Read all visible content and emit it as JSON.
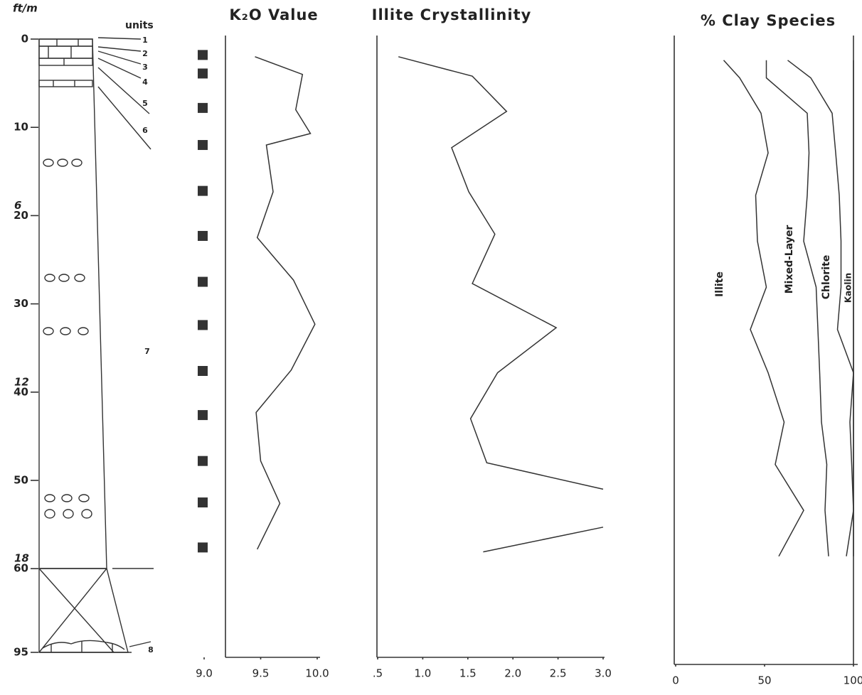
{
  "depth_axis": {
    "label": "ft/m",
    "ticks": [
      0,
      10,
      20,
      30,
      40,
      50,
      60,
      95
    ],
    "metric_ticks": [
      {
        "value": 20,
        "label": "6"
      },
      {
        "value": 40,
        "label": "12"
      },
      {
        "value": 60,
        "label": "18"
      }
    ]
  },
  "lithology": {
    "label": "units",
    "units": [
      "1",
      "2",
      "3",
      "4",
      "5",
      "6",
      "7",
      "8"
    ]
  },
  "chart_data": [
    {
      "type": "line",
      "title": "K₂O Value",
      "xlim": [
        9,
        10
      ],
      "xticks": [
        {
          "value": 9,
          "label": "9.0"
        },
        9.5,
        {
          "value": 10,
          "label": "10.0"
        }
      ],
      "depths": [
        2.0,
        4.0,
        8.0,
        10.7,
        12.0,
        17.3,
        22.5,
        27.3,
        32.3,
        37.5,
        42.3,
        47.8,
        52.6,
        57.8
      ],
      "values": [
        9.45,
        9.87,
        9.81,
        9.94,
        9.55,
        9.61,
        9.47,
        9.79,
        9.98,
        9.77,
        9.46,
        9.5,
        9.67,
        9.47
      ],
      "sample_depths": [
        1.8,
        3.9,
        7.8,
        12.0,
        17.2,
        22.3,
        27.5,
        32.4,
        37.6,
        42.6,
        47.8,
        52.5,
        57.6
      ],
      "color": "#333333"
    },
    {
      "type": "line",
      "title": "Illite Crystallinity",
      "xlim": [
        0.5,
        3
      ],
      "xticks": [
        {
          "value": 0.5,
          "label": ".5"
        },
        {
          "value": 1,
          "label": "1.0"
        },
        1.5,
        {
          "value": 2,
          "label": "2.0"
        },
        2.5,
        {
          "value": 3,
          "label": "3.0"
        }
      ],
      "depths": [
        2.0,
        4.2,
        8.2,
        12.3,
        17.3,
        22.1,
        27.7,
        32.7,
        37.8,
        43.0,
        48.0,
        51.0,
        null,
        55.3,
        58.1
      ],
      "values": [
        0.73,
        1.55,
        1.93,
        1.32,
        1.51,
        1.8,
        1.55,
        2.48,
        1.83,
        1.53,
        1.71,
        3.0,
        null,
        3.0,
        1.67
      ],
      "color": "#333333"
    },
    {
      "type": "stacked_area",
      "title": "% Clay Species",
      "xlim": [
        0,
        100
      ],
      "xticks": [
        0,
        50,
        100
      ],
      "depths": [
        2.4,
        4.4,
        8.4,
        12.9,
        17.7,
        22.9,
        28.1,
        32.9,
        37.8,
        43.4,
        48.2,
        53.4,
        58.6
      ],
      "series": [
        {
          "name": "Illite",
          "color": "#333333",
          "values": [
            27,
            36,
            48,
            52,
            45,
            46,
            51,
            42,
            52,
            61,
            56,
            72,
            58
          ]
        },
        {
          "name": "Mixed-Layer",
          "color": "#333333",
          "values": [
            24,
            15,
            26,
            23,
            29,
            26,
            28,
            38,
            29,
            21,
            29,
            12,
            28
          ]
        },
        {
          "name": "Chlorite",
          "color": "#333333",
          "values": [
            12,
            25,
            14,
            15,
            18,
            21,
            14,
            11,
            19,
            16,
            14,
            16,
            10
          ]
        },
        {
          "name": "Kaolin",
          "color": "#333333",
          "values": [
            37,
            24,
            12,
            10,
            8,
            7,
            7,
            9,
            0,
            2,
            1,
            0,
            4
          ]
        }
      ]
    }
  ]
}
